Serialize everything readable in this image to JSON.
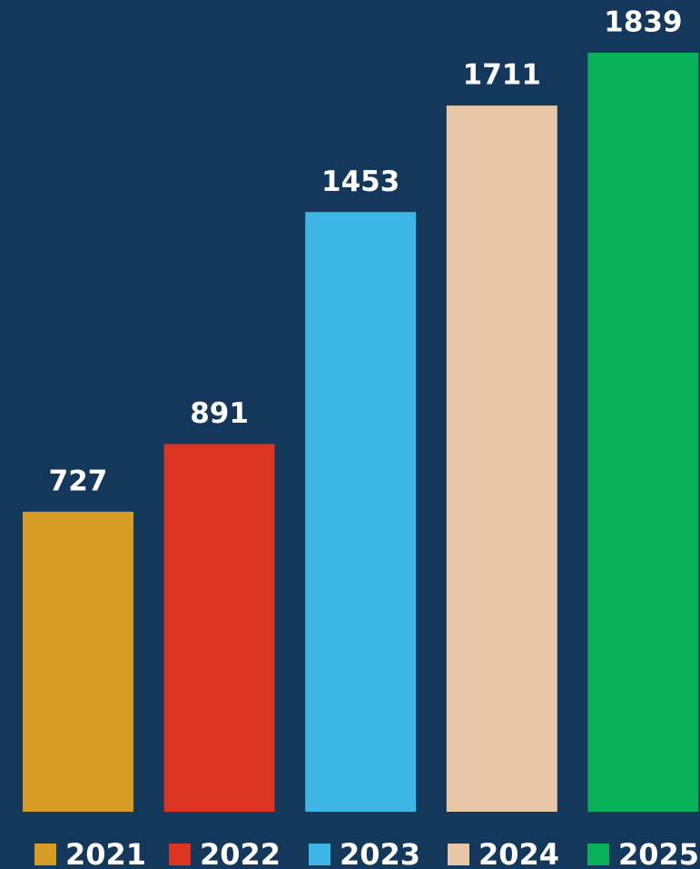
{
  "chart_data": {
    "type": "bar",
    "categories": [
      "2021",
      "2022",
      "2023",
      "2024",
      "2025"
    ],
    "values": [
      727,
      891,
      1453,
      1711,
      1839
    ],
    "colors": [
      "#d69b22",
      "#dc3420",
      "#3db5e5",
      "#e8c6a8",
      "#07b057"
    ],
    "legend": "bottom"
  }
}
